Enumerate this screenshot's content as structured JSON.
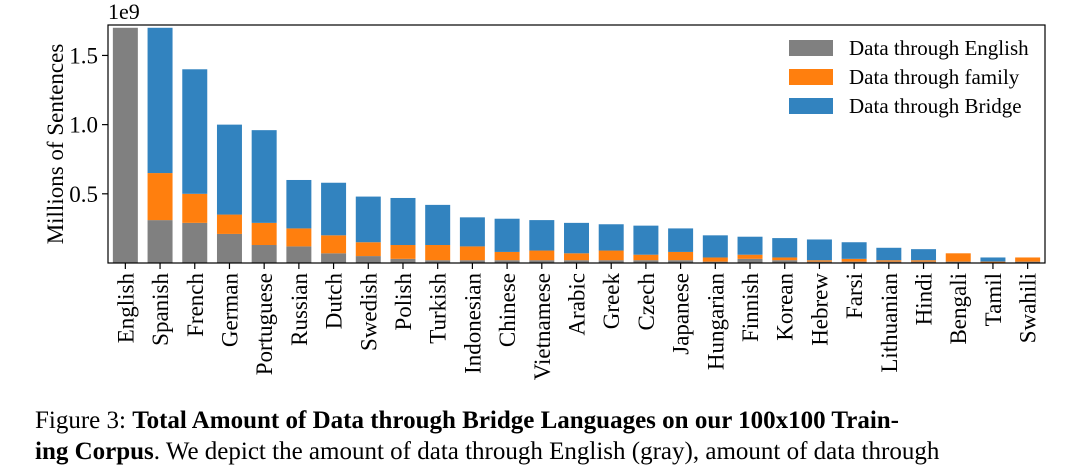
{
  "chart_data": {
    "type": "bar",
    "stacked": true,
    "ylabel": "Millions of Sentences",
    "y_offset_label": "1e9",
    "ylim": [
      0,
      1.72
    ],
    "yticks": [
      0.5,
      1.0,
      1.5
    ],
    "ytick_labels": [
      "0.5",
      "1.0",
      "1.5"
    ],
    "legend_position": "top-right",
    "categories": [
      "English",
      "Spanish",
      "French",
      "German",
      "Portuguese",
      "Russian",
      "Dutch",
      "Swedish",
      "Polish",
      "Turkish",
      "Indonesian",
      "Chinese",
      "Vietnamese",
      "Arabic",
      "Greek",
      "Czech",
      "Japanese",
      "Hungarian",
      "Finnish",
      "Korean",
      "Hebrew",
      "Farsi",
      "Lithuanian",
      "Hindi",
      "Bengali",
      "Tamil",
      "Swahili"
    ],
    "series": [
      {
        "name": "Data through English",
        "color": "#808080",
        "values": [
          1.7,
          0.31,
          0.29,
          0.21,
          0.13,
          0.12,
          0.07,
          0.05,
          0.03,
          0.02,
          0.02,
          0.02,
          0.02,
          0.02,
          0.02,
          0.02,
          0.02,
          0.01,
          0.03,
          0.02,
          0.01,
          0.01,
          0.01,
          0.01,
          0.01,
          0.0,
          0.01
        ]
      },
      {
        "name": "Data through family",
        "color": "#ff7f0e",
        "values": [
          0.0,
          0.34,
          0.21,
          0.14,
          0.16,
          0.13,
          0.13,
          0.1,
          0.1,
          0.11,
          0.1,
          0.06,
          0.07,
          0.05,
          0.07,
          0.04,
          0.06,
          0.03,
          0.03,
          0.02,
          0.01,
          0.02,
          0.01,
          0.01,
          0.06,
          0.01,
          0.03
        ]
      },
      {
        "name": "Data through Bridge",
        "color": "#3283bf",
        "values": [
          0.0,
          1.05,
          0.9,
          0.65,
          0.67,
          0.35,
          0.38,
          0.33,
          0.34,
          0.29,
          0.21,
          0.24,
          0.22,
          0.22,
          0.19,
          0.21,
          0.17,
          0.16,
          0.13,
          0.14,
          0.15,
          0.12,
          0.09,
          0.08,
          0.0,
          0.03,
          0.0
        ]
      }
    ]
  },
  "caption": {
    "line1_prefix": "Figure 3: ",
    "line1_bold": "Total Amount of Data through Bridge Languages on our 100x100 Train-",
    "line2_bold": "ing Corpus",
    "line2_rest": ". We depict the amount of data through English (gray), amount of data through"
  }
}
